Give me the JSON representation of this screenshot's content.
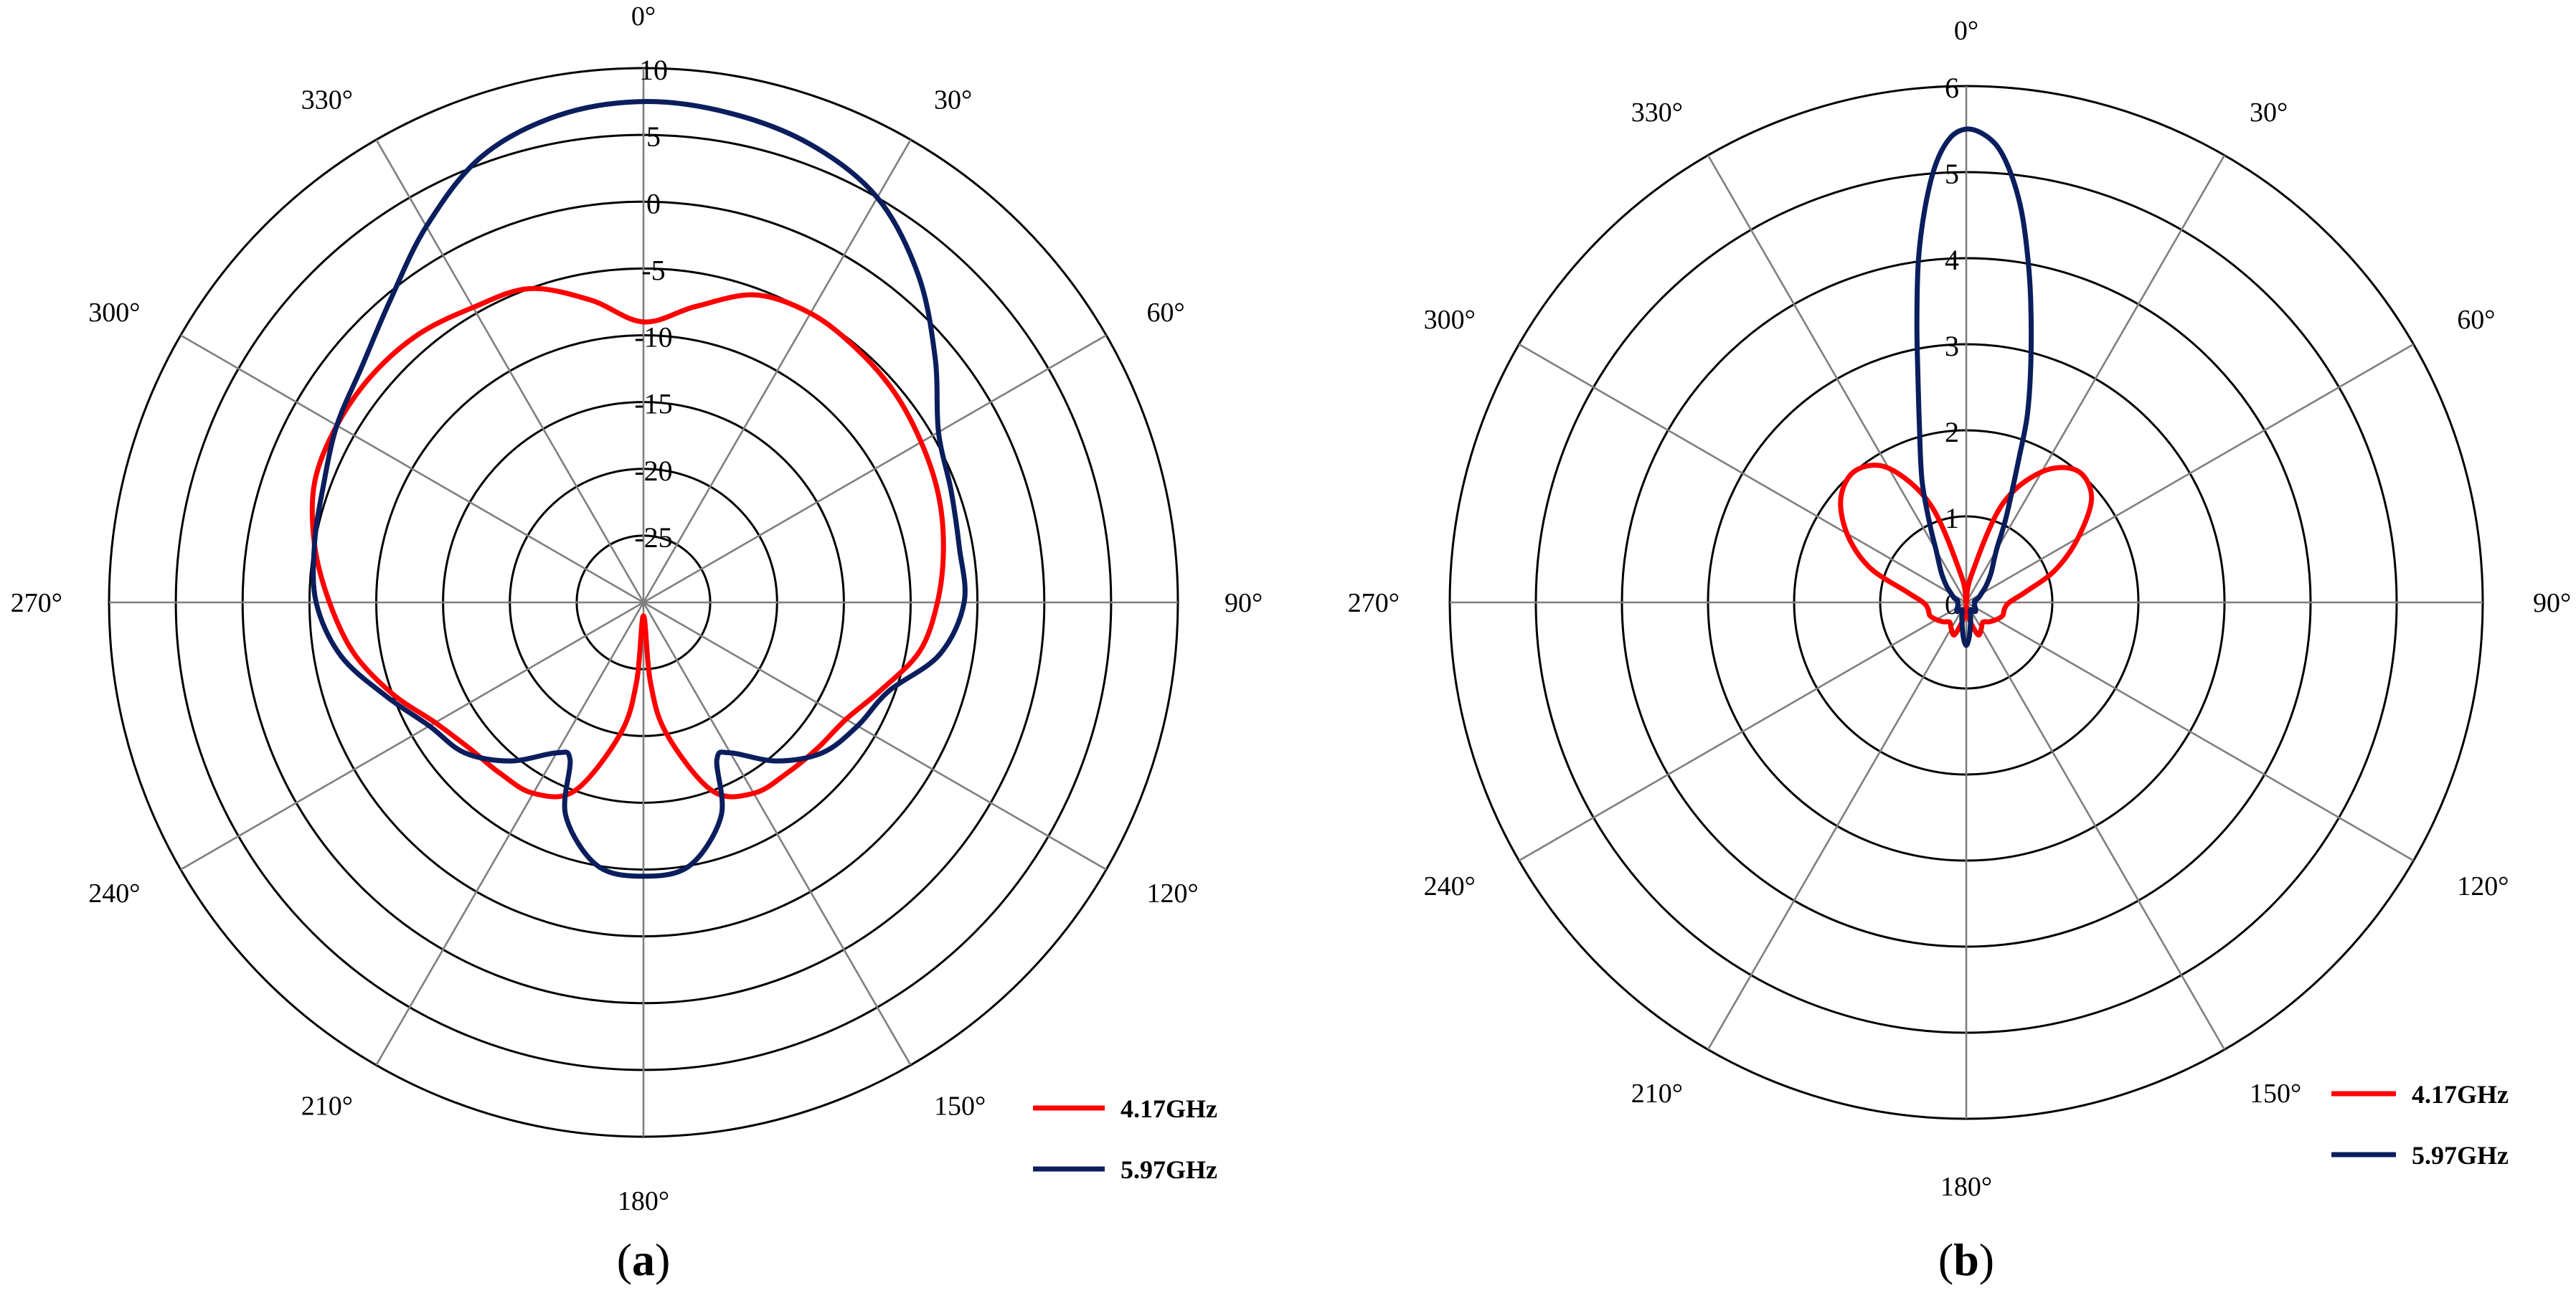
{
  "chart_data": [
    {
      "type": "polar-line",
      "panel_label": "a",
      "radial_range": [
        -30,
        10
      ],
      "radial_ticks": [
        "10",
        "5",
        "0",
        "-5",
        "-10",
        "-15",
        "-20",
        "-25"
      ],
      "angle_ticks": [
        "0°",
        "30°",
        "60°",
        "90°",
        "120°",
        "150°",
        "180°",
        "210°",
        "240°",
        "270°",
        "300°",
        "330°"
      ],
      "legend_position": "bottom-right",
      "series": [
        {
          "name": "4.17GHz",
          "color": "#ff0000",
          "theta": [
            0,
            10,
            20,
            30,
            40,
            50,
            60,
            70,
            80,
            90,
            100,
            110,
            120,
            130,
            140,
            150,
            160,
            170,
            175,
            180,
            185,
            190,
            200,
            210,
            220,
            230,
            240,
            250,
            260,
            270,
            280,
            290,
            300,
            310,
            320,
            330,
            340,
            350
          ],
          "values": [
            -9,
            -7.5,
            -5.5,
            -5,
            -5.2,
            -5.5,
            -6,
            -6.5,
            -7.2,
            -8,
            -9,
            -11,
            -12.5,
            -13,
            -13.3,
            -13.5,
            -15,
            -20,
            -24,
            -29,
            -24,
            -20,
            -15,
            -13.5,
            -13.3,
            -13,
            -12,
            -10,
            -8,
            -6.5,
            -5,
            -3.8,
            -3.5,
            -3.5,
            -3.8,
            -4.5,
            -5,
            -7
          ]
        },
        {
          "name": "5.97GHz",
          "color": "#0a1e5e",
          "theta": [
            0,
            10,
            20,
            30,
            40,
            50,
            60,
            70,
            80,
            90,
            100,
            110,
            120,
            130,
            140,
            150,
            155,
            160,
            170,
            180,
            190,
            200,
            205,
            210,
            220,
            230,
            240,
            250,
            260,
            270,
            280,
            290,
            300,
            310,
            320,
            330,
            340,
            350
          ],
          "values": [
            7.5,
            7.2,
            6.5,
            5,
            2,
            -1.5,
            -4.5,
            -5.5,
            -6,
            -6,
            -7.5,
            -10.5,
            -11.5,
            -12.5,
            -14.5,
            -17,
            -17,
            -13,
            -10,
            -9.5,
            -10,
            -13,
            -17,
            -17,
            -14.5,
            -12.5,
            -11.5,
            -9.5,
            -7,
            -5.5,
            -5,
            -4.5,
            -3.5,
            -2.5,
            -0.5,
            2.5,
            5.5,
            7
          ]
        }
      ]
    },
    {
      "type": "polar-line",
      "panel_label": "b",
      "radial_range": [
        0,
        6
      ],
      "radial_ticks": [
        "6",
        "5",
        "4",
        "3",
        "2",
        "1",
        "0"
      ],
      "angle_ticks": [
        "0°",
        "30°",
        "60°",
        "90°",
        "120°",
        "150°",
        "180°",
        "210°",
        "240°",
        "270°",
        "300°",
        "330°"
      ],
      "legend_position": "bottom-right",
      "series": [
        {
          "name": "4.17GHz",
          "color": "#ff0000",
          "theta": [
            0,
            10,
            20,
            30,
            40,
            50,
            60,
            70,
            80,
            90,
            100,
            110,
            120,
            130,
            140,
            150,
            160,
            170,
            180,
            190,
            200,
            210,
            220,
            230,
            240,
            250,
            260,
            270,
            280,
            290,
            300,
            310,
            320,
            330,
            340,
            350
          ],
          "values": [
            0,
            0.3,
            1.2,
            1.75,
            2,
            1.9,
            1.5,
            1.1,
            0.7,
            0.5,
            0.45,
            0.45,
            0.4,
            0.35,
            0.3,
            0.35,
            0.4,
            0.2,
            0.05,
            0.2,
            0.4,
            0.35,
            0.3,
            0.35,
            0.4,
            0.45,
            0.45,
            0.5,
            0.7,
            1.2,
            1.6,
            1.9,
            2,
            1.8,
            1.2,
            0.3
          ]
        },
        {
          "name": "5.97GHz",
          "color": "#0a1e5e",
          "theta": [
            0,
            2,
            4,
            6,
            8,
            10,
            12,
            15,
            18,
            20,
            25,
            30,
            40,
            50,
            60,
            70,
            80,
            90,
            100,
            110,
            120,
            135,
            150,
            165,
            175,
            180,
            185,
            195,
            210,
            225,
            240,
            250,
            260,
            270,
            280,
            290,
            300,
            310,
            320,
            330,
            335,
            340,
            345,
            348,
            350,
            352,
            354,
            356,
            358
          ],
          "values": [
            5.5,
            5.45,
            5.3,
            5.0,
            4.6,
            4.1,
            3.6,
            2.9,
            2.3,
            1.8,
            1.1,
            0.7,
            0.45,
            0.3,
            0.2,
            0.15,
            0.1,
            0.1,
            0.1,
            0.1,
            0.12,
            0.15,
            0.1,
            0.2,
            0.4,
            0.5,
            0.4,
            0.2,
            0.1,
            0.15,
            0.12,
            0.1,
            0.1,
            0.1,
            0.1,
            0.15,
            0.2,
            0.3,
            0.45,
            0.7,
            1.0,
            1.5,
            2.1,
            2.7,
            3.3,
            4.0,
            4.6,
            5.1,
            5.4
          ]
        }
      ]
    }
  ]
}
